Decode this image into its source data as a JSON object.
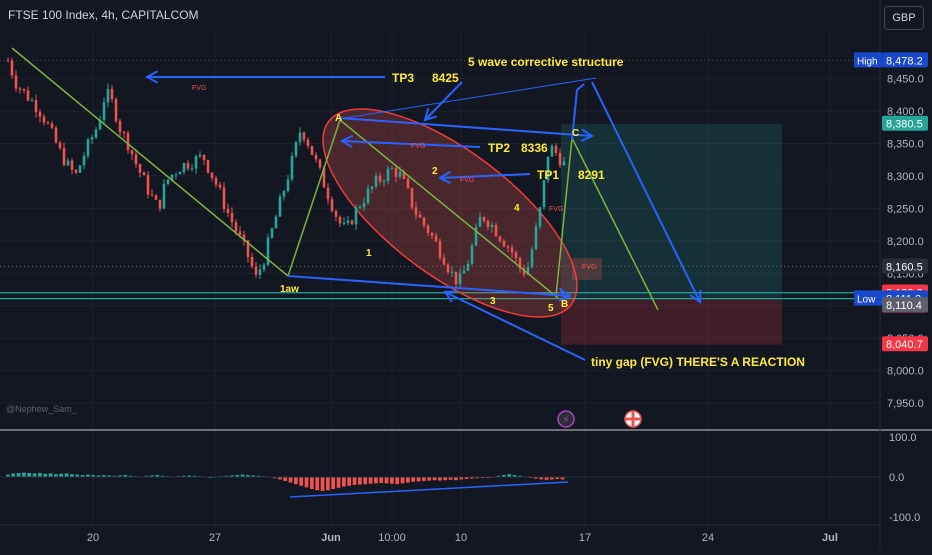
{
  "header": {
    "title": "FTSE 100 Index, 4h, CAPITALCOM",
    "currency": "GBP"
  },
  "watermark": "@Nephew_Sam_",
  "colors": {
    "bg": "#131722",
    "up": "#26a69a",
    "down": "#ef5350",
    "annotation_blue": "#2962ff",
    "label_yellow": "#ffeb3b",
    "wave_green": "#7cb342"
  },
  "chart_data": {
    "type": "candlestick",
    "x_tick_labels": [
      "20",
      "27",
      "Jun",
      "10:00",
      "10",
      "17",
      "24",
      "Jul"
    ],
    "ylim": [
      7910,
      8525
    ],
    "y_tick_labels": [
      "8,450.0",
      "8,400.0",
      "8,350.0",
      "8,300.0",
      "8,250.0",
      "8,200.0",
      "8,150.0",
      "8,100.0",
      "8,050.0",
      "8,000.0",
      "7,950.0"
    ],
    "y_tick_values": [
      8450,
      8400,
      8350,
      8300,
      8250,
      8200,
      8150,
      8100,
      8050,
      8000,
      7950
    ],
    "price_badges": [
      {
        "text": "High",
        "value": "8,478.2",
        "price": 8478.2,
        "color": "#1848cc",
        "label_side": true
      },
      {
        "text": "",
        "value": "8,380.5",
        "price": 8380.5,
        "color": "#26a69a"
      },
      {
        "text": "",
        "value": "8,160.5",
        "price": 8160.5,
        "color": "#2a2e39"
      },
      {
        "text": "",
        "value": "8,120.3",
        "price": 8120.3,
        "color": "#f23645",
        "countdown": "02:46:45"
      },
      {
        "text": "Low",
        "value": "8,111.3",
        "price": 8111.3,
        "color": "#1848cc",
        "label_side": true
      },
      {
        "text": "",
        "value": "8,110.4",
        "price": 8101,
        "color": "#5d606b"
      },
      {
        "text": "",
        "value": "8,040.7",
        "price": 8040.7,
        "color": "#f23645"
      }
    ],
    "path_points": [
      8478,
      8445,
      8430,
      8418,
      8405,
      8385,
      8360,
      8335,
      8315,
      8300,
      8330,
      8355,
      8380,
      8430,
      8410,
      8370,
      8350,
      8320,
      8295,
      8270,
      8250,
      8290,
      8305,
      8315,
      8320,
      8325,
      8330,
      8305,
      8280,
      8250,
      8225,
      8200,
      8175,
      8142,
      8170,
      8210,
      8250,
      8290,
      8330,
      8375,
      8350,
      8320,
      8290,
      8260,
      8230,
      8215,
      8240,
      8260,
      8275,
      8290,
      8300,
      8310,
      8305,
      8280,
      8250,
      8230,
      8215,
      8195,
      8175,
      8150,
      8135,
      8160,
      8200,
      8240,
      8230,
      8215,
      8200,
      8185,
      8160,
      8150,
      8200,
      8258,
      8346,
      8335,
      8318
    ],
    "annotations": {
      "tp3": "TP3",
      "tp3_value": "8425",
      "tp2": "TP2",
      "tp2_value": "8336",
      "tp1": "TP1",
      "tp1_value": "8291",
      "structure": "5 wave corrective structure",
      "gap_note": "tiny gap (FVG) THERE'S A REACTION",
      "wave_labels": [
        "1aw",
        "A",
        "1",
        "2",
        "3",
        "4",
        "5",
        "B",
        "C"
      ],
      "fvg_tag": "FVG"
    },
    "position_tool": {
      "target": 8380,
      "entry": 8111,
      "stop": 8040
    }
  },
  "oscillator": {
    "y_tick_labels": [
      "100.0",
      "0.0",
      "-100.0"
    ],
    "y_tick_values": [
      100,
      0,
      -100
    ],
    "values": [
      6,
      9,
      10,
      11,
      10,
      9,
      10,
      8,
      9,
      7,
      8,
      9,
      7,
      6,
      5,
      6,
      5,
      4,
      5,
      4,
      3,
      4,
      5,
      3,
      2,
      1,
      3,
      4,
      5,
      3,
      2,
      1,
      2,
      3,
      4,
      3,
      2,
      1,
      0,
      1,
      2,
      3,
      4,
      5,
      6,
      5,
      4,
      3,
      2,
      1,
      -3,
      -6,
      -10,
      -14,
      -18,
      -22,
      -26,
      -30,
      -33,
      -35,
      -33,
      -30,
      -27,
      -24,
      -22,
      -20,
      -19,
      -18,
      -17,
      -16,
      -15,
      -16,
      -17,
      -18,
      -16,
      -14,
      -12,
      -11,
      -10,
      -9,
      -8,
      -9,
      -8,
      -7,
      -8,
      -6,
      -5,
      -4,
      -3,
      -2,
      -1,
      1,
      3,
      5,
      7,
      5,
      3,
      1,
      -2,
      -4,
      -6,
      -7,
      -6,
      -5,
      -6
    ]
  }
}
